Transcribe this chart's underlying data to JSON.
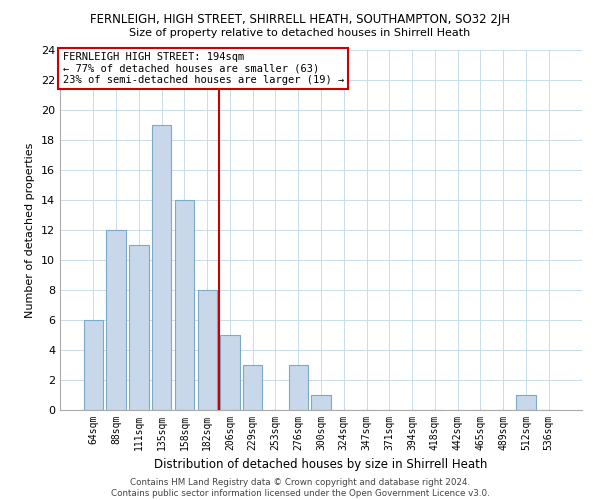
{
  "title": "FERNLEIGH, HIGH STREET, SHIRRELL HEATH, SOUTHAMPTON, SO32 2JH",
  "subtitle": "Size of property relative to detached houses in Shirrell Heath",
  "xlabel": "Distribution of detached houses by size in Shirrell Heath",
  "ylabel": "Number of detached properties",
  "bar_labels": [
    "64sqm",
    "88sqm",
    "111sqm",
    "135sqm",
    "158sqm",
    "182sqm",
    "206sqm",
    "229sqm",
    "253sqm",
    "276sqm",
    "300sqm",
    "324sqm",
    "347sqm",
    "371sqm",
    "394sqm",
    "418sqm",
    "442sqm",
    "465sqm",
    "489sqm",
    "512sqm",
    "536sqm"
  ],
  "bar_values": [
    6,
    12,
    11,
    19,
    14,
    8,
    5,
    3,
    0,
    3,
    1,
    0,
    0,
    0,
    0,
    0,
    0,
    0,
    0,
    1,
    0
  ],
  "bar_color": "#c8d8ea",
  "bar_edge_color": "#7aaac8",
  "ylim": [
    0,
    24
  ],
  "yticks": [
    0,
    2,
    4,
    6,
    8,
    10,
    12,
    14,
    16,
    18,
    20,
    22,
    24
  ],
  "ref_line_x": 5.5,
  "ref_line_color": "#cc0000",
  "annotation_line1": "FERNLEIGH HIGH STREET: 194sqm",
  "annotation_line2": "← 77% of detached houses are smaller (63)",
  "annotation_line3": "23% of semi-detached houses are larger (19) →",
  "annotation_box_edge": "#cc0000",
  "footer_line1": "Contains HM Land Registry data © Crown copyright and database right 2024.",
  "footer_line2": "Contains public sector information licensed under the Open Government Licence v3.0.",
  "background_color": "#ffffff",
  "grid_color": "#c8dcea"
}
